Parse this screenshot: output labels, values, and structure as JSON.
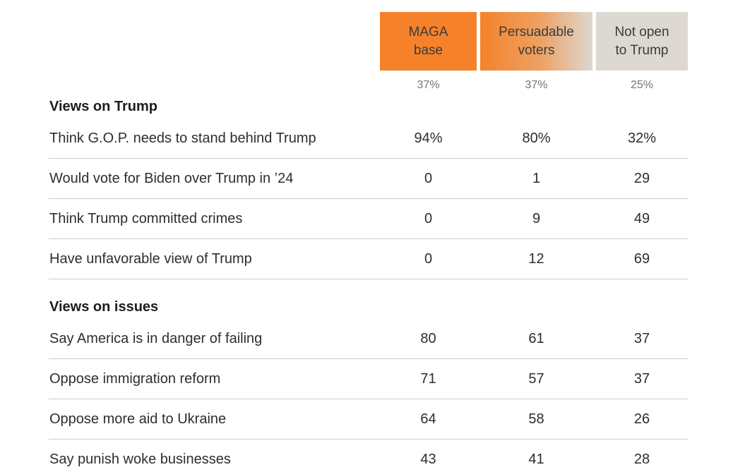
{
  "chart_data": {
    "type": "table",
    "title": "",
    "columns": [
      {
        "label": "MAGA base",
        "share": "37%"
      },
      {
        "label": "Persuadable voters",
        "share": "37%"
      },
      {
        "label": "Not open to Trump",
        "share": "25%"
      }
    ],
    "sections": [
      {
        "title": "Views on Trump",
        "rows": [
          {
            "label": "Think G.O.P. needs to stand behind Trump",
            "values": [
              "94%",
              "80%",
              "32%"
            ]
          },
          {
            "label": "Would vote for Biden over Trump in ’24",
            "values": [
              "0",
              "1",
              "29"
            ]
          },
          {
            "label": "Think Trump committed crimes",
            "values": [
              "0",
              "9",
              "49"
            ]
          },
          {
            "label": "Have unfavorable view of Trump",
            "values": [
              "0",
              "12",
              "69"
            ]
          }
        ]
      },
      {
        "title": "Views on issues",
        "rows": [
          {
            "label": "Say America is in danger of failing",
            "values": [
              "80",
              "61",
              "37"
            ]
          },
          {
            "label": "Oppose immigration reform",
            "values": [
              "71",
              "57",
              "37"
            ]
          },
          {
            "label": "Oppose more aid to Ukraine",
            "values": [
              "64",
              "58",
              "26"
            ]
          },
          {
            "label": "Say punish woke businesses",
            "values": [
              "43",
              "41",
              "28"
            ]
          }
        ]
      }
    ],
    "layout_hints": {
      "legend_position": "none",
      "grid": "horizontal-row-dividers",
      "column_header_fills": [
        "solid-orange",
        "orange-to-gray-gradient",
        "solid-gray"
      ]
    }
  },
  "colors": {
    "maga_orange": "#f5822b",
    "neutral_gray": "#ddd8d1",
    "header_text": "#3b3b3b",
    "share_text": "#757575",
    "body_text": "#2e2e2e",
    "section_title_text": "#1d1d1d",
    "divider": "#cccccc"
  }
}
